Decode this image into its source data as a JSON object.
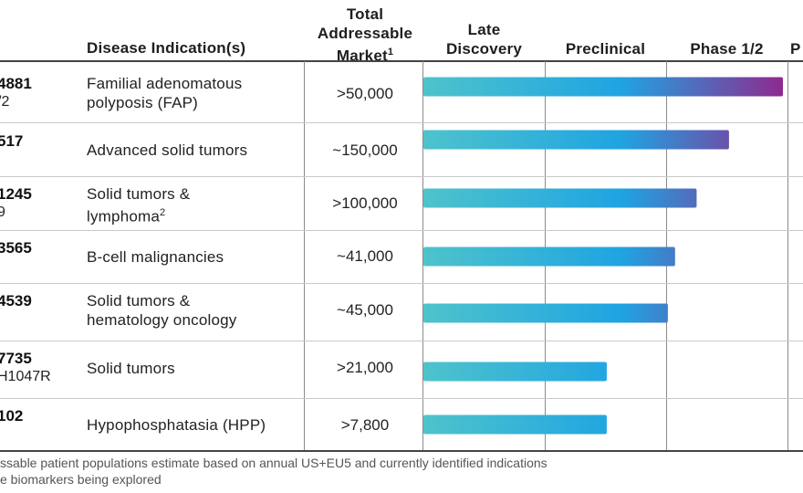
{
  "header": {
    "indication": "Disease Indication(s)",
    "market_lines": [
      "Total",
      "Addressable",
      "Market"
    ],
    "market_sup": "1",
    "stages": [
      {
        "lines": [
          "Late",
          "Discovery"
        ]
      },
      {
        "lines": [
          "Preclinical"
        ]
      },
      {
        "lines": [
          "Phase 1/2"
        ]
      },
      {
        "lines": [
          "P"
        ]
      }
    ]
  },
  "rows": [
    {
      "code": "4881",
      "sub": "/2",
      "indication_lines": [
        "Familial adenomatous",
        "polyposis (FAP)"
      ],
      "indication_sup": "",
      "market": ">50,000",
      "progress": 1.0
    },
    {
      "code": "517",
      "sub": "",
      "indication_lines": [
        "Advanced solid tumors"
      ],
      "indication_sup": "",
      "market": "~150,000",
      "progress": 0.85
    },
    {
      "code": "1245",
      "sub": "9",
      "indication_lines": [
        "Solid tumors &",
        "lymphoma"
      ],
      "indication_sup": "2",
      "market": ">100,000",
      "progress": 0.76
    },
    {
      "code": "3565",
      "sub": "",
      "indication_lines": [
        "B-cell malignancies"
      ],
      "indication_sup": "",
      "market": "~41,000",
      "progress": 0.7
    },
    {
      "code": "4539",
      "sub": "",
      "indication_lines": [
        "Solid tumors &",
        "hematology oncology"
      ],
      "indication_sup": "",
      "market": "~45,000",
      "progress": 0.68
    },
    {
      "code": "7735",
      "sub": "H1047R",
      "indication_lines": [
        "Solid tumors"
      ],
      "indication_sup": "",
      "market": ">21,000",
      "progress": 0.51
    },
    {
      "code": "102",
      "sub": "",
      "indication_lines": [
        "Hypophosphatasia (HPP)"
      ],
      "indication_sup": "",
      "market": ">7,800",
      "progress": 0.51
    }
  ],
  "footnotes": [
    {
      "text": "ssable patient populations estimate based on annual US+EU5 and currently identified indications"
    },
    {
      "text": "e biomarkers being explored"
    }
  ],
  "colors": {
    "bar_start": "#4ec3cc",
    "bar_mid": "#1fa4e2",
    "bar_end": "#8e2a8f",
    "rule": "#444444",
    "grid": "#c9c9c9"
  },
  "chart_data": {
    "type": "bar",
    "orientation": "horizontal",
    "categories": [
      "Familial adenomatous polyposis (FAP)",
      "Advanced solid tumors",
      "Solid tumors & lymphoma",
      "B-cell malignancies",
      "Solid tumors & hematology oncology",
      "Solid tumors",
      "Hypophosphatasia (HPP)"
    ],
    "stage_axis": [
      "Late Discovery",
      "Preclinical",
      "Phase 1/2",
      "P"
    ],
    "values": [
      2.99,
      2.53,
      2.3,
      2.14,
      2.08,
      1.54,
      1.54
    ],
    "xlim": [
      0,
      4
    ],
    "grid": true
  }
}
